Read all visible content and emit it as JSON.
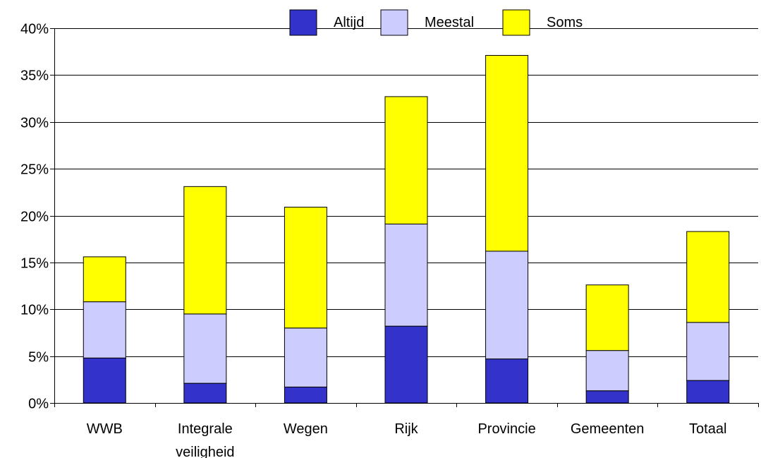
{
  "chart_data": {
    "type": "bar",
    "stacked": true,
    "categories": [
      [
        "WWB"
      ],
      [
        "Integrale",
        "veiligheid"
      ],
      [
        "Wegen"
      ],
      [
        "Rijk"
      ],
      [
        "Provincie"
      ],
      [
        "Gemeenten"
      ],
      [
        "Totaal"
      ]
    ],
    "series": [
      {
        "name": "Altijd",
        "color": "#3333cc",
        "values": [
          4.8,
          2.1,
          1.7,
          8.2,
          4.7,
          1.3,
          2.4
        ]
      },
      {
        "name": "Meestal",
        "color": "#ccccff",
        "values": [
          6.0,
          7.4,
          6.3,
          10.9,
          11.5,
          4.3,
          6.2
        ]
      },
      {
        "name": "Soms",
        "color": "#ffff00",
        "values": [
          4.8,
          13.6,
          12.9,
          13.6,
          20.9,
          7.0,
          9.7
        ]
      }
    ],
    "ylim": [
      0,
      40
    ],
    "yticks": [
      0,
      5,
      10,
      15,
      20,
      25,
      30,
      35,
      40
    ],
    "ytick_format": "{v}%",
    "grid": true,
    "legend_position": "top-center"
  }
}
